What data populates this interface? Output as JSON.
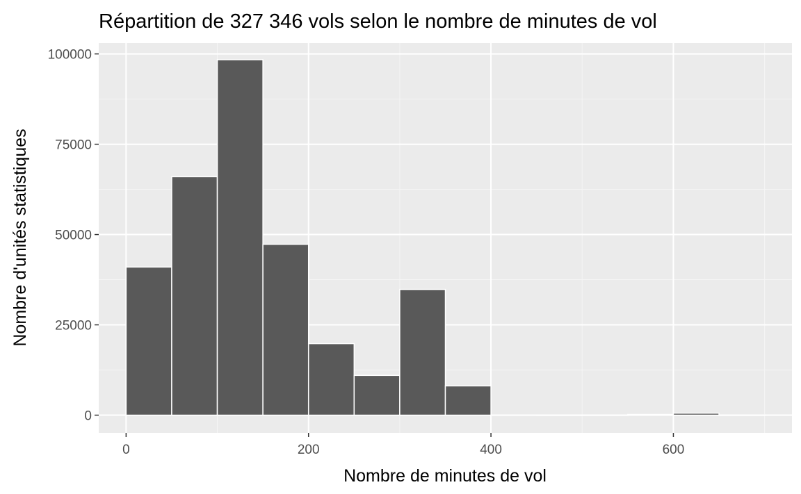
{
  "chart_data": {
    "type": "bar",
    "title": "Répartition de 327 346 vols selon le nombre de minutes de vol",
    "xlabel": "Nombre de minutes de vol",
    "ylabel": "Nombre d'unités statistiques",
    "xlim": [
      -30,
      730
    ],
    "ylim": [
      -4900,
      103000
    ],
    "x_ticks": [
      0,
      200,
      400,
      600
    ],
    "x_minor_ticks": [
      100,
      300,
      500,
      700
    ],
    "y_ticks": [
      0,
      25000,
      50000,
      75000,
      100000
    ],
    "y_minor_ticks": [
      12500,
      37500,
      62500,
      87500
    ],
    "grid": true,
    "bins": [
      {
        "x0": 0,
        "x1": 50,
        "count": 41000
      },
      {
        "x0": 50,
        "x1": 100,
        "count": 66000
      },
      {
        "x0": 100,
        "x1": 150,
        "count": 98400
      },
      {
        "x0": 150,
        "x1": 200,
        "count": 47300
      },
      {
        "x0": 200,
        "x1": 250,
        "count": 19800
      },
      {
        "x0": 250,
        "x1": 300,
        "count": 11000
      },
      {
        "x0": 300,
        "x1": 350,
        "count": 34800
      },
      {
        "x0": 350,
        "x1": 400,
        "count": 8100
      },
      {
        "x0": 400,
        "x1": 450,
        "count": 30
      },
      {
        "x0": 450,
        "x1": 500,
        "count": 10
      },
      {
        "x0": 500,
        "x1": 550,
        "count": 10
      },
      {
        "x0": 550,
        "x1": 600,
        "count": 200
      },
      {
        "x0": 600,
        "x1": 650,
        "count": 550
      },
      {
        "x0": 650,
        "x1": 700,
        "count": 10
      }
    ],
    "colors": {
      "bar_fill": "#595959",
      "bar_stroke": "#ffffff",
      "panel_bg": "#ebebeb",
      "grid_major": "#ffffff",
      "grid_minor": "#f5f5f5",
      "tick_mark": "#333333",
      "tick_text": "#4d4d4d"
    }
  }
}
